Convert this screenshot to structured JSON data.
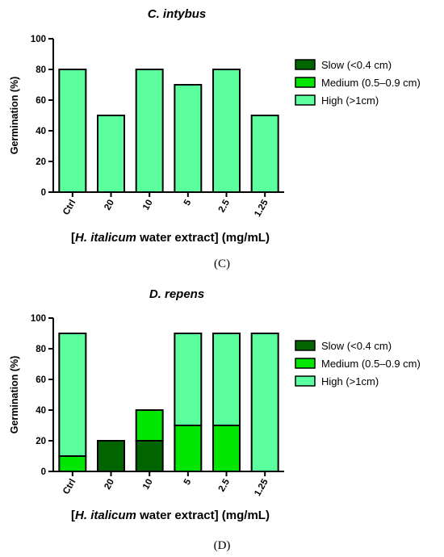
{
  "chart_data": [
    {
      "type": "bar",
      "stacked": true,
      "title": "C. intybus",
      "panel_label": "(C)",
      "ylabel": "Germination (%)",
      "xlabel_parts": [
        "[",
        "H. italicum",
        " water extract] (mg/mL)"
      ],
      "categories": [
        "Ctrl",
        "20",
        "10",
        "5",
        "2.5",
        "1.25"
      ],
      "ylim": [
        0,
        100
      ],
      "yticks": [
        0,
        20,
        40,
        60,
        80,
        100
      ],
      "series": [
        {
          "name": "Slow (<0.4 cm)",
          "color": "#006400",
          "values": [
            0,
            0,
            0,
            0,
            0,
            0
          ]
        },
        {
          "name": "Medium (0.5–0.9 cm)",
          "color": "#00e600",
          "values": [
            0,
            0,
            0,
            0,
            0,
            0
          ]
        },
        {
          "name": "High (>1cm)",
          "color": "#5cff9d",
          "values": [
            80,
            50,
            80,
            70,
            80,
            50
          ]
        }
      ],
      "legend": "right",
      "grid": false
    },
    {
      "type": "bar",
      "stacked": true,
      "title": "D. repens",
      "panel_label": "(D)",
      "ylabel": "Germination (%)",
      "xlabel_parts": [
        "[",
        "H. italicum",
        " water extract] (mg/mL)"
      ],
      "categories": [
        "Ctrl",
        "20",
        "10",
        "5",
        "2.5",
        "1.25"
      ],
      "ylim": [
        0,
        100
      ],
      "yticks": [
        0,
        20,
        40,
        60,
        80,
        100
      ],
      "series": [
        {
          "name": "Slow (<0.4 cm)",
          "color": "#006400",
          "values": [
            0,
            20,
            20,
            0,
            0,
            0
          ]
        },
        {
          "name": "Medium (0.5–0.9 cm)",
          "color": "#00e600",
          "values": [
            10,
            0,
            20,
            30,
            30,
            0
          ]
        },
        {
          "name": "High (>1cm)",
          "color": "#5cff9d",
          "values": [
            80,
            0,
            0,
            60,
            60,
            90
          ]
        }
      ],
      "legend": "right",
      "grid": false
    }
  ]
}
